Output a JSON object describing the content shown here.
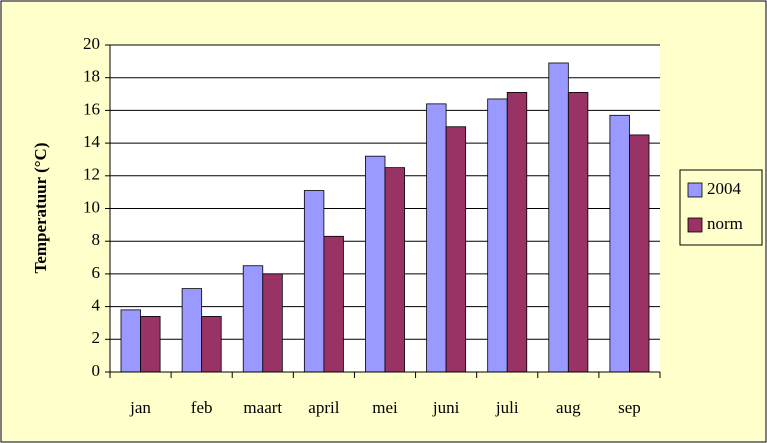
{
  "chart_data": {
    "type": "bar",
    "y_label": "Temperatuur (°C)",
    "categories": [
      "jan",
      "feb",
      "maart",
      "april",
      "mei",
      "juni",
      "juli",
      "aug",
      "sep"
    ],
    "series": [
      {
        "name": "2004",
        "color": "#9999ff",
        "values": [
          3.8,
          5.1,
          6.5,
          11.1,
          13.2,
          16.4,
          16.7,
          18.9,
          15.7
        ]
      },
      {
        "name": "norm",
        "color": "#993366",
        "values": [
          3.4,
          3.4,
          6.0,
          8.3,
          12.5,
          15.0,
          17.1,
          17.1,
          14.5
        ]
      }
    ],
    "ylim": [
      0,
      20
    ],
    "yticks": [
      0,
      2,
      4,
      6,
      8,
      10,
      12,
      14,
      16,
      18,
      20
    ],
    "grid": true,
    "legend": "right"
  }
}
